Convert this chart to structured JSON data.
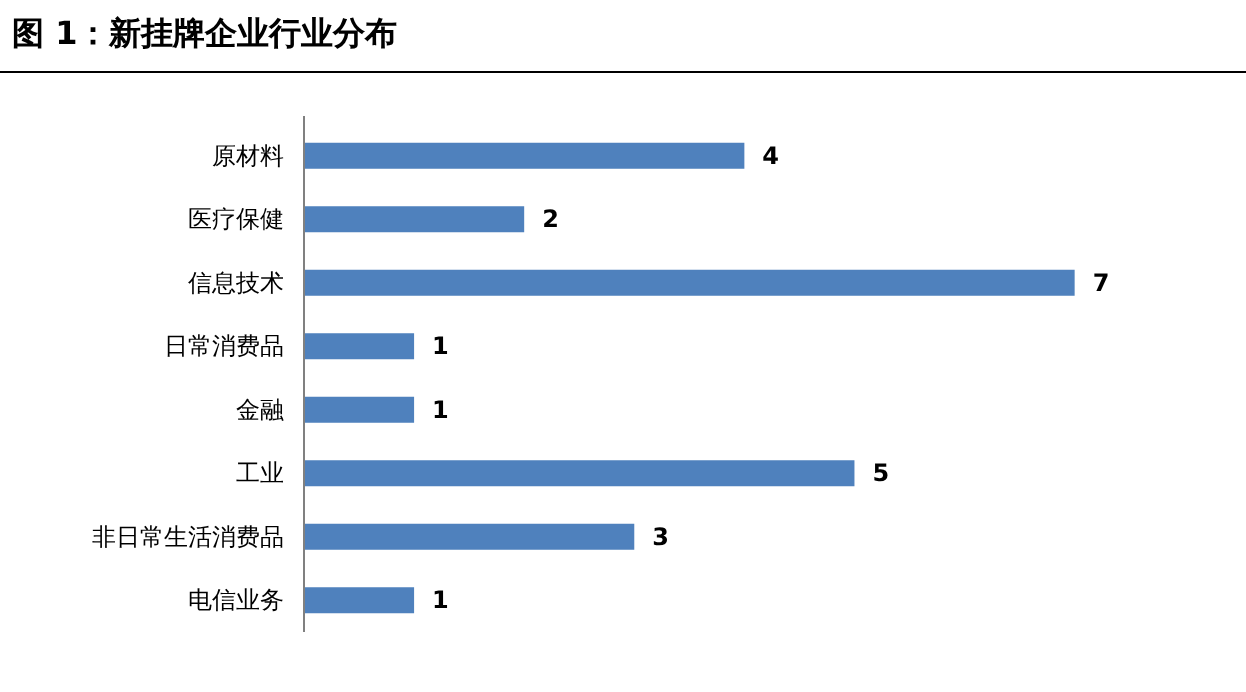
{
  "chart_data": {
    "type": "bar",
    "orientation": "horizontal",
    "title": "图 1：新挂牌企业行业分布",
    "categories": [
      "原材料",
      "医疗保健",
      "信息技术",
      "日常消费品",
      "金融",
      "工业",
      "非日常生活消费品",
      "电信业务"
    ],
    "values": [
      4,
      2,
      7,
      1,
      1,
      5,
      3,
      1
    ],
    "color": "#4f81bd",
    "data_labels": true
  }
}
